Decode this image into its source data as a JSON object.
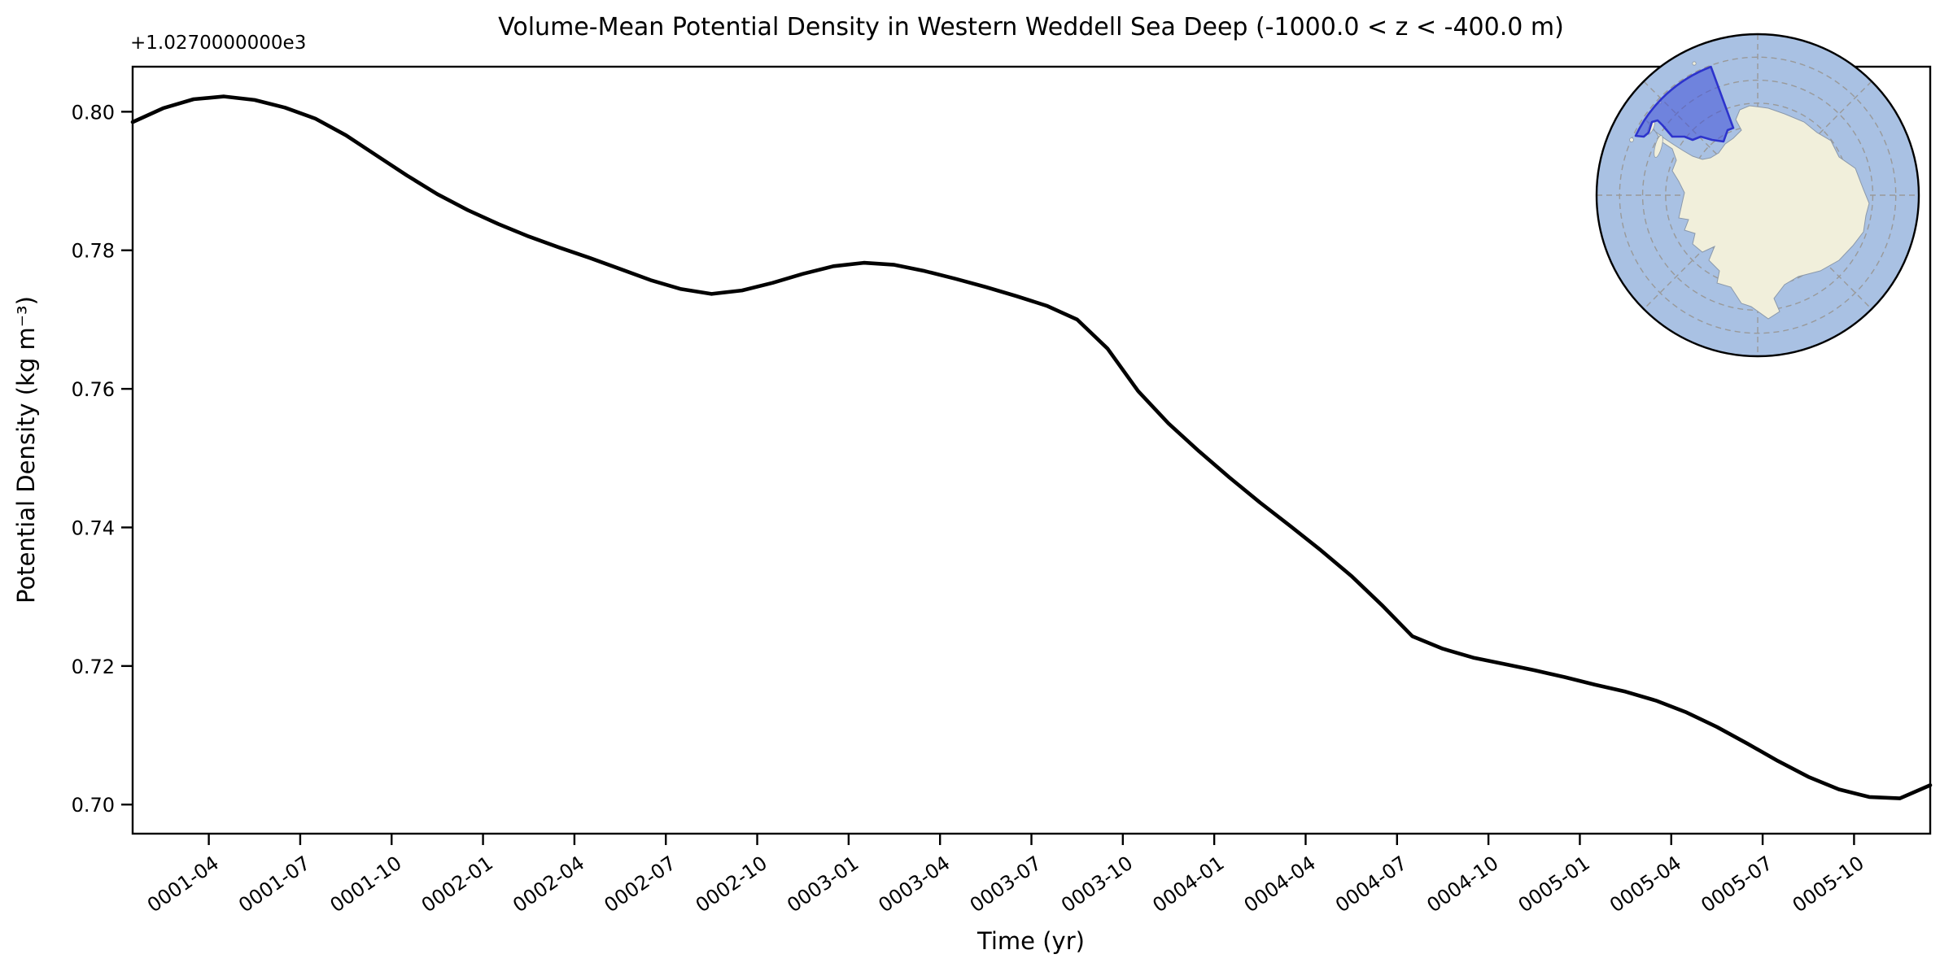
{
  "chart_data": {
    "type": "line",
    "title": "Volume-Mean Potential Density in Western Weddell Sea Deep (-1000.0 < z < -400.0 m)",
    "xlabel": "Time (yr)",
    "ylabel": "Potential Density (kg m⁻³)",
    "y_offset_text": "+1.0270000000e3",
    "y_value_offset": 1027.0,
    "ylim": [
      0.6958,
      0.8065
    ],
    "grid": false,
    "legend": null,
    "yticks": [
      "0.80",
      "0.78",
      "0.76",
      "0.74",
      "0.72",
      "0.70"
    ],
    "xticks": [
      "0001-04",
      "0001-07",
      "0001-10",
      "0002-01",
      "0002-04",
      "0002-07",
      "0002-10",
      "0003-01",
      "0003-04",
      "0003-07",
      "0003-10",
      "0004-01",
      "0004-04",
      "0004-07",
      "0004-10",
      "0005-01",
      "0005-04",
      "0005-07",
      "0005-10"
    ],
    "xtick_rotation_deg": 35,
    "series": [
      {
        "name": "volume-mean-potential-density",
        "color": "#000000",
        "linewidth": 4.6,
        "x": [
          "0001-01",
          "0001-02",
          "0001-03",
          "0001-04",
          "0001-05",
          "0001-06",
          "0001-07",
          "0001-08",
          "0001-09",
          "0001-10",
          "0001-11",
          "0001-12",
          "0002-01",
          "0002-02",
          "0002-03",
          "0002-04",
          "0002-05",
          "0002-06",
          "0002-07",
          "0002-08",
          "0002-09",
          "0002-10",
          "0002-11",
          "0002-12",
          "0003-01",
          "0003-02",
          "0003-03",
          "0003-04",
          "0003-05",
          "0003-06",
          "0003-07",
          "0003-08",
          "0003-09",
          "0003-10",
          "0003-11",
          "0003-12",
          "0004-01",
          "0004-02",
          "0004-03",
          "0004-04",
          "0004-05",
          "0004-06",
          "0004-07",
          "0004-08",
          "0004-09",
          "0004-10",
          "0004-11",
          "0004-12",
          "0005-01",
          "0005-02",
          "0005-03",
          "0005-04",
          "0005-05",
          "0005-06",
          "0005-07",
          "0005-08",
          "0005-09",
          "0005-10",
          "0005-11",
          "0005-12"
        ],
        "values": [
          0.7985,
          0.8005,
          0.8018,
          0.8022,
          0.8017,
          0.8006,
          0.799,
          0.7966,
          0.7937,
          0.7908,
          0.7881,
          0.7858,
          0.7838,
          0.782,
          0.7804,
          0.7789,
          0.7773,
          0.7757,
          0.7744,
          0.7737,
          0.7742,
          0.7753,
          0.7766,
          0.7777,
          0.7782,
          0.7779,
          0.777,
          0.7759,
          0.7747,
          0.7734,
          0.772,
          0.77,
          0.7658,
          0.7597,
          0.755,
          0.751,
          0.7472,
          0.7436,
          0.7402,
          0.7367,
          0.733,
          0.7288,
          0.7243,
          0.7225,
          0.7212,
          0.7203,
          0.7194,
          0.7184,
          0.7173,
          0.7163,
          0.715,
          0.7133,
          0.7112,
          0.7088,
          0.7063,
          0.704,
          0.7022,
          0.7011,
          0.7009,
          0.7028
        ]
      }
    ]
  },
  "inset_map": {
    "name": "antarctica-south-polar-stereographic-map",
    "region_label": "Western Weddell Sea",
    "ocean_color": "#a9c1e3",
    "land_color": "#f1efdb",
    "land_edge_color": "#8b99ab",
    "graticule_color": "#999999",
    "boundary_color": "#000000",
    "region_fill": "#4050d8",
    "region_fill_opacity": 0.55,
    "region_edge": "#2d33cc"
  }
}
